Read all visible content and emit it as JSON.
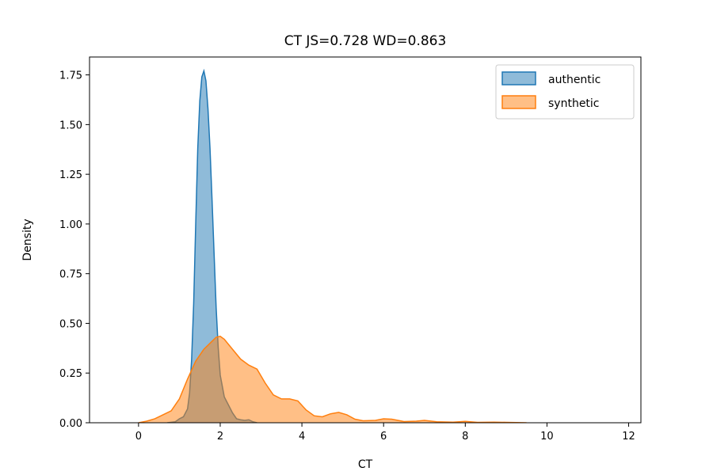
{
  "chart_data": {
    "type": "area",
    "title": "CT  JS=0.728  WD=0.863",
    "xlabel": "CT",
    "ylabel": "Density",
    "xlim": [
      -1.2,
      12.3
    ],
    "ylim": [
      0,
      1.84
    ],
    "xticks": [
      0,
      2,
      4,
      6,
      8,
      10,
      12
    ],
    "yticks": [
      0.0,
      0.25,
      0.5,
      0.75,
      1.0,
      1.25,
      1.5,
      1.75
    ],
    "ytick_labels": [
      "0.00",
      "0.25",
      "0.50",
      "0.75",
      "1.00",
      "1.25",
      "1.50",
      "1.75"
    ],
    "grid": false,
    "legend_position": "top-right",
    "series": [
      {
        "name": "authentic",
        "color": "#1f77b4",
        "fill_color": "#1f77b4",
        "x": [
          0.7,
          0.9,
          1.0,
          1.1,
          1.2,
          1.25,
          1.3,
          1.35,
          1.4,
          1.45,
          1.5,
          1.55,
          1.6,
          1.65,
          1.7,
          1.75,
          1.8,
          1.85,
          1.9,
          1.95,
          2.0,
          2.1,
          2.2,
          2.3,
          2.4,
          2.5,
          2.6,
          2.7,
          2.8,
          2.9
        ],
        "y": [
          0.0,
          0.005,
          0.02,
          0.03,
          0.07,
          0.15,
          0.32,
          0.6,
          1.0,
          1.38,
          1.62,
          1.74,
          1.77,
          1.72,
          1.58,
          1.38,
          1.12,
          0.85,
          0.58,
          0.38,
          0.24,
          0.13,
          0.09,
          0.05,
          0.02,
          0.015,
          0.012,
          0.015,
          0.005,
          0.0
        ]
      },
      {
        "name": "synthetic",
        "color": "#ff7f0e",
        "fill_color": "#ffbb78",
        "x": [
          0.0,
          0.2,
          0.4,
          0.6,
          0.8,
          1.0,
          1.2,
          1.4,
          1.6,
          1.8,
          1.9,
          2.0,
          2.1,
          2.3,
          2.5,
          2.7,
          2.9,
          3.1,
          3.3,
          3.5,
          3.7,
          3.9,
          4.1,
          4.3,
          4.5,
          4.7,
          4.9,
          5.1,
          5.3,
          5.5,
          5.8,
          6.0,
          6.2,
          6.5,
          6.8,
          7.0,
          7.3,
          7.7,
          8.0,
          8.3,
          8.7,
          9.0,
          9.5
        ],
        "y": [
          0.0,
          0.008,
          0.02,
          0.04,
          0.06,
          0.12,
          0.22,
          0.31,
          0.37,
          0.41,
          0.43,
          0.435,
          0.42,
          0.37,
          0.32,
          0.29,
          0.27,
          0.2,
          0.14,
          0.12,
          0.12,
          0.11,
          0.065,
          0.035,
          0.03,
          0.045,
          0.052,
          0.04,
          0.018,
          0.01,
          0.012,
          0.02,
          0.018,
          0.006,
          0.008,
          0.012,
          0.005,
          0.003,
          0.007,
          0.002,
          0.003,
          0.002,
          0.0
        ]
      }
    ],
    "overlap_color": "#c6a07a"
  }
}
